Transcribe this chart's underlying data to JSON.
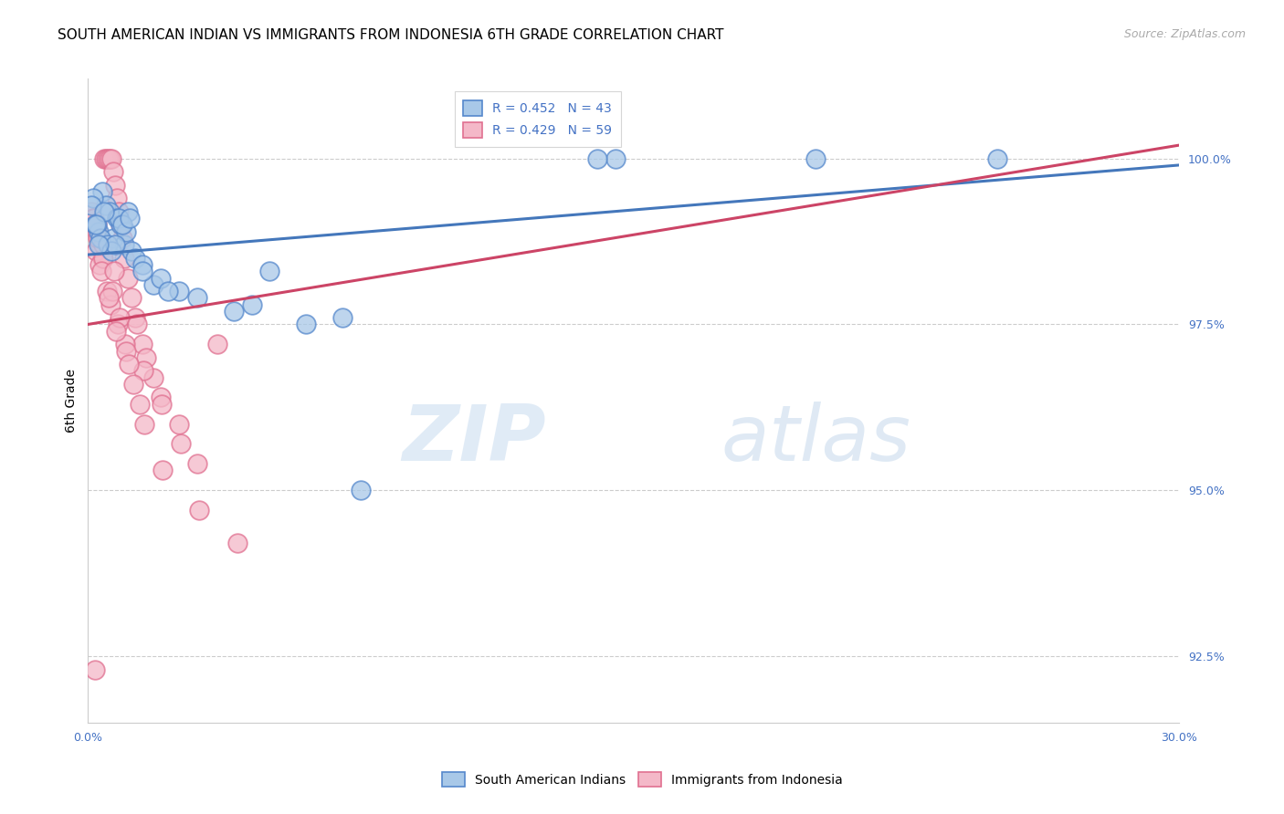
{
  "title": "SOUTH AMERICAN INDIAN VS IMMIGRANTS FROM INDONESIA 6TH GRADE CORRELATION CHART",
  "source": "Source: ZipAtlas.com",
  "ylabel": "6th Grade",
  "xlim": [
    0.0,
    30.0
  ],
  "ylim": [
    91.5,
    101.2
  ],
  "yticks": [
    92.5,
    95.0,
    97.5,
    100.0
  ],
  "ytick_labels": [
    "92.5%",
    "95.0%",
    "97.5%",
    "100.0%"
  ],
  "blue_R": 0.452,
  "blue_N": 43,
  "pink_R": 0.429,
  "pink_N": 59,
  "blue_color": "#a8c8e8",
  "pink_color": "#f4b8c8",
  "blue_edge_color": "#5588cc",
  "pink_edge_color": "#e07090",
  "blue_line_color": "#4477bb",
  "pink_line_color": "#cc4466",
  "watermark_color": "#ddeeff",
  "blue_scatter_x": [
    0.2,
    0.3,
    0.4,
    0.5,
    0.6,
    0.7,
    0.8,
    0.9,
    1.0,
    1.1,
    1.2,
    1.3,
    1.5,
    1.8,
    2.0,
    2.5,
    3.0,
    4.0,
    4.5,
    5.0,
    6.0,
    7.0,
    14.5,
    20.0,
    25.0,
    0.25,
    0.35,
    0.55,
    0.65,
    0.85,
    1.05,
    0.15,
    0.1,
    0.45,
    0.75,
    1.5,
    2.2,
    0.95,
    0.28,
    1.15,
    7.5,
    14.0,
    0.22
  ],
  "blue_scatter_y": [
    99.0,
    98.9,
    99.5,
    99.3,
    99.2,
    98.8,
    99.1,
    99.0,
    98.7,
    99.2,
    98.6,
    98.5,
    98.4,
    98.1,
    98.2,
    98.0,
    97.9,
    97.7,
    97.8,
    98.3,
    97.5,
    97.6,
    100.0,
    100.0,
    100.0,
    99.0,
    98.8,
    98.7,
    98.6,
    99.1,
    98.9,
    99.4,
    99.3,
    99.2,
    98.7,
    98.3,
    98.0,
    99.0,
    98.7,
    99.1,
    95.0,
    100.0,
    99.0
  ],
  "pink_scatter_x": [
    0.1,
    0.15,
    0.2,
    0.25,
    0.3,
    0.35,
    0.4,
    0.45,
    0.5,
    0.55,
    0.6,
    0.65,
    0.7,
    0.75,
    0.8,
    0.85,
    0.9,
    0.95,
    1.0,
    1.1,
    1.2,
    1.3,
    1.5,
    1.6,
    1.8,
    2.0,
    2.5,
    3.0,
    0.22,
    0.32,
    0.52,
    0.62,
    0.82,
    1.02,
    1.52,
    2.02,
    0.17,
    0.27,
    0.42,
    0.68,
    0.88,
    1.05,
    1.25,
    1.55,
    2.05,
    3.05,
    4.1,
    0.38,
    0.58,
    0.78,
    1.12,
    1.42,
    2.55,
    0.23,
    0.43,
    0.73,
    1.35,
    3.55,
    0.18
  ],
  "pink_scatter_y": [
    99.2,
    99.1,
    99.0,
    98.9,
    98.8,
    98.7,
    98.5,
    100.0,
    100.0,
    100.0,
    100.0,
    100.0,
    99.8,
    99.6,
    99.4,
    99.2,
    99.0,
    98.8,
    98.5,
    98.2,
    97.9,
    97.6,
    97.2,
    97.0,
    96.7,
    96.4,
    96.0,
    95.4,
    98.6,
    98.4,
    98.0,
    97.8,
    97.5,
    97.2,
    96.8,
    96.3,
    99.1,
    98.8,
    98.5,
    98.0,
    97.6,
    97.1,
    96.6,
    96.0,
    95.3,
    94.7,
    94.2,
    98.3,
    97.9,
    97.4,
    96.9,
    96.3,
    95.7,
    99.0,
    98.7,
    98.3,
    97.5,
    97.2,
    92.3
  ],
  "blue_line_x0": 0.0,
  "blue_line_y0": 98.55,
  "blue_line_x1": 30.0,
  "blue_line_y1": 99.9,
  "pink_line_x0": 0.0,
  "pink_line_y0": 97.5,
  "pink_line_x1": 30.0,
  "pink_line_y1": 100.2,
  "title_fontsize": 11,
  "source_fontsize": 9,
  "label_fontsize": 10,
  "tick_fontsize": 9,
  "legend_fontsize": 10
}
